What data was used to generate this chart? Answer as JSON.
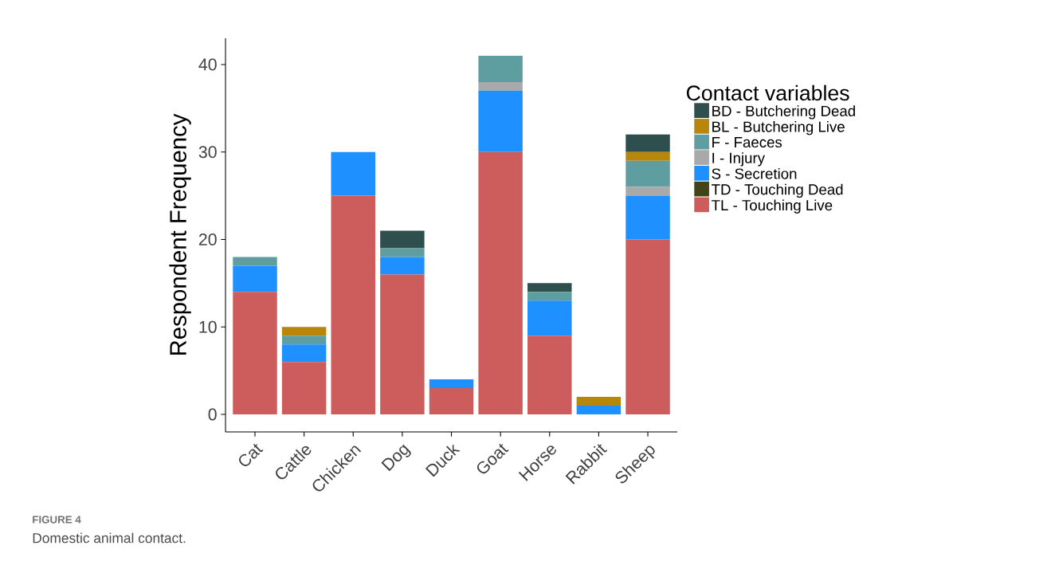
{
  "chart_data": {
    "type": "bar",
    "stacked": true,
    "ylabel": "Respondent Frequency",
    "legend_title": "Contact variables",
    "legend": "right",
    "grid": false,
    "categories": [
      "Cat",
      "Cattle",
      "Chicken",
      "Dog",
      "Duck",
      "Goat",
      "Horse",
      "Rabbit",
      "Sheep"
    ],
    "ylim": [
      -2,
      43
    ],
    "yticks": [
      0,
      10,
      20,
      30,
      40
    ],
    "series": [
      {
        "name": "TL - Touching Live",
        "color": "#cd5c5c",
        "values": [
          14,
          6,
          25,
          16,
          3,
          30,
          9,
          0,
          20
        ]
      },
      {
        "name": "TD - Touching Dead",
        "color": "#434318",
        "values": [
          0,
          0,
          0,
          0,
          0,
          0,
          0,
          0,
          0
        ]
      },
      {
        "name": "S - Secretion",
        "color": "#1e90ff",
        "values": [
          3,
          2,
          5,
          2,
          1,
          7,
          4,
          1,
          5
        ]
      },
      {
        "name": "I - Injury",
        "color": "#a9a9a9",
        "values": [
          0,
          0,
          0,
          0,
          0,
          1,
          0,
          0,
          1
        ]
      },
      {
        "name": "F - Faeces",
        "color": "#5f9ea0",
        "values": [
          1,
          1,
          0,
          1,
          0,
          3,
          1,
          0,
          3
        ]
      },
      {
        "name": "BL - Butchering Live",
        "color": "#b8860b",
        "values": [
          0,
          1,
          0,
          0,
          0,
          0,
          0,
          1,
          1
        ]
      },
      {
        "name": "BD - Butchering Dead",
        "color": "#2f4f4f",
        "values": [
          0,
          0,
          0,
          2,
          0,
          0,
          1,
          0,
          2
        ]
      }
    ],
    "annotations": [
      "FIGURE 4",
      "Domestic animal contact."
    ]
  }
}
